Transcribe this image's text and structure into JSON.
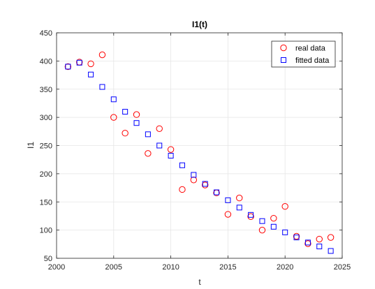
{
  "chart_data": {
    "type": "scatter",
    "title": "I1(t)",
    "xlabel": "t",
    "ylabel": "I1",
    "xlim": [
      2000,
      2025
    ],
    "ylim": [
      50,
      450
    ],
    "x_ticks": [
      2000,
      2005,
      2010,
      2015,
      2020,
      2025
    ],
    "y_ticks": [
      50,
      100,
      150,
      200,
      250,
      300,
      350,
      400,
      450
    ],
    "grid": true,
    "legend_position": "top-right",
    "series": [
      {
        "name": "real data",
        "marker": "circle",
        "color": "#ff0000",
        "x": [
          2001,
          2002,
          2003,
          2004,
          2005,
          2006,
          2007,
          2008,
          2009,
          2010,
          2011,
          2012,
          2013,
          2014,
          2015,
          2016,
          2017,
          2018,
          2019,
          2020,
          2021,
          2022,
          2023,
          2024
        ],
        "y": [
          390,
          398,
          395,
          411,
          300,
          272,
          305,
          236,
          280,
          243,
          172,
          189,
          180,
          166,
          128,
          157,
          124,
          100,
          121,
          142,
          89,
          76,
          84,
          87
        ]
      },
      {
        "name": "fitted data",
        "marker": "square",
        "color": "#0000ff",
        "x": [
          2001,
          2002,
          2003,
          2004,
          2005,
          2006,
          2007,
          2008,
          2009,
          2010,
          2011,
          2012,
          2013,
          2014,
          2015,
          2016,
          2017,
          2018,
          2019,
          2020,
          2021,
          2022,
          2023,
          2024
        ],
        "y": [
          390,
          397,
          376,
          354,
          332,
          310,
          290,
          270,
          250,
          232,
          215,
          198,
          182,
          167,
          153,
          140,
          127,
          116,
          106,
          96,
          87,
          78,
          71,
          63
        ]
      }
    ]
  }
}
